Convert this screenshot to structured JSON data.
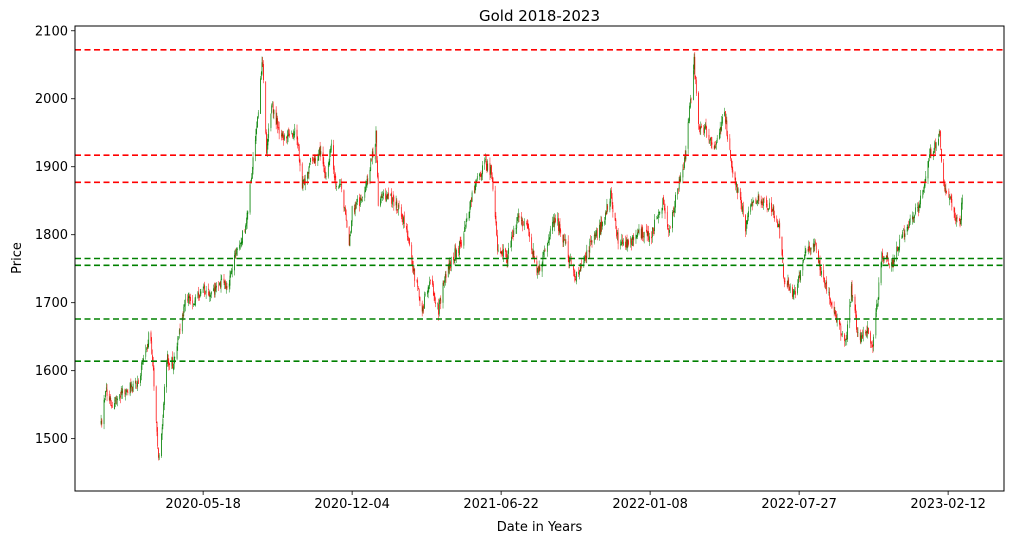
{
  "chart_data": {
    "type": "candlestick",
    "title": "Gold 2018-2023",
    "xlabel": "Date in Years",
    "ylabel": "Price",
    "x_range": [
      "2019-11-28",
      "2023-04-28"
    ],
    "ylim": [
      1423,
      2107
    ],
    "grid": false,
    "x_ticks": [
      "2020-05-18",
      "2020-12-04",
      "2021-06-22",
      "2022-01-08",
      "2022-07-27",
      "2023-02-12"
    ],
    "y_ticks": [
      1500,
      1600,
      1700,
      1800,
      1900,
      2000,
      2100
    ],
    "up_color": "#008000",
    "down_color": "#ff0000",
    "resistance_levels": [
      2072,
      1917,
      1877
    ],
    "support_levels": [
      1765,
      1755,
      1676,
      1614
    ],
    "resistance_color": "#ff0000",
    "support_color": "#008000",
    "data_start": "2020-01-02",
    "data_end": "2023-03-03",
    "price_path": [
      [
        "2020-01-02",
        1520
      ],
      [
        "2020-01-08",
        1572
      ],
      [
        "2020-01-16",
        1548
      ],
      [
        "2020-01-30",
        1565
      ],
      [
        "2020-02-10",
        1575
      ],
      [
        "2020-02-20",
        1580
      ],
      [
        "2020-03-01",
        1620
      ],
      [
        "2020-03-08",
        1665
      ],
      [
        "2020-03-12",
        1600
      ],
      [
        "2020-03-19",
        1470
      ],
      [
        "2020-03-23",
        1500
      ],
      [
        "2020-03-30",
        1620
      ],
      [
        "2020-04-08",
        1610
      ],
      [
        "2020-04-14",
        1650
      ],
      [
        "2020-04-24",
        1705
      ],
      [
        "2020-05-05",
        1700
      ],
      [
        "2020-05-18",
        1720
      ],
      [
        "2020-05-28",
        1715
      ],
      [
        "2020-06-10",
        1730
      ],
      [
        "2020-06-20",
        1725
      ],
      [
        "2020-06-30",
        1770
      ],
      [
        "2020-07-14",
        1810
      ],
      [
        "2020-07-27",
        1940
      ],
      [
        "2020-08-06",
        2060
      ],
      [
        "2020-08-11",
        1920
      ],
      [
        "2020-08-18",
        1990
      ],
      [
        "2020-08-28",
        1955
      ],
      [
        "2020-09-08",
        1940
      ],
      [
        "2020-09-20",
        1955
      ],
      [
        "2020-09-28",
        1870
      ],
      [
        "2020-10-08",
        1905
      ],
      [
        "2020-10-22",
        1920
      ],
      [
        "2020-10-30",
        1880
      ],
      [
        "2020-11-06",
        1940
      ],
      [
        "2020-11-10",
        1880
      ],
      [
        "2020-11-20",
        1870
      ],
      [
        "2020-11-30",
        1780
      ],
      [
        "2020-12-04",
        1835
      ],
      [
        "2020-12-14",
        1850
      ],
      [
        "2020-12-24",
        1875
      ],
      [
        "2021-01-05",
        1945
      ],
      [
        "2021-01-08",
        1850
      ],
      [
        "2021-01-20",
        1860
      ],
      [
        "2021-02-01",
        1845
      ],
      [
        "2021-02-12",
        1820
      ],
      [
        "2021-02-26",
        1740
      ],
      [
        "2021-03-08",
        1690
      ],
      [
        "2021-03-18",
        1735
      ],
      [
        "2021-03-30",
        1690
      ],
      [
        "2021-04-08",
        1740
      ],
      [
        "2021-04-20",
        1770
      ],
      [
        "2021-05-01",
        1790
      ],
      [
        "2021-05-10",
        1840
      ],
      [
        "2021-05-20",
        1880
      ],
      [
        "2021-06-01",
        1905
      ],
      [
        "2021-06-10",
        1890
      ],
      [
        "2021-06-17",
        1780
      ],
      [
        "2021-06-22",
        1780
      ],
      [
        "2021-06-30",
        1765
      ],
      [
        "2021-07-14",
        1825
      ],
      [
        "2021-07-28",
        1810
      ],
      [
        "2021-08-06",
        1760
      ],
      [
        "2021-08-09",
        1740
      ],
      [
        "2021-08-20",
        1780
      ],
      [
        "2021-09-03",
        1825
      ],
      [
        "2021-09-15",
        1790
      ],
      [
        "2021-09-29",
        1735
      ],
      [
        "2021-10-12",
        1765
      ],
      [
        "2021-10-22",
        1790
      ],
      [
        "2021-11-05",
        1815
      ],
      [
        "2021-11-16",
        1860
      ],
      [
        "2021-11-26",
        1790
      ],
      [
        "2021-12-08",
        1785
      ],
      [
        "2021-12-20",
        1800
      ],
      [
        "2022-01-03",
        1805
      ],
      [
        "2022-01-08",
        1795
      ],
      [
        "2022-01-25",
        1850
      ],
      [
        "2022-02-03",
        1805
      ],
      [
        "2022-02-14",
        1870
      ],
      [
        "2022-02-24",
        1910
      ],
      [
        "2022-03-08",
        2055
      ],
      [
        "2022-03-14",
        1960
      ],
      [
        "2022-03-25",
        1950
      ],
      [
        "2022-04-06",
        1925
      ],
      [
        "2022-04-18",
        1980
      ],
      [
        "2022-04-28",
        1895
      ],
      [
        "2022-05-10",
        1850
      ],
      [
        "2022-05-16",
        1810
      ],
      [
        "2022-05-25",
        1850
      ],
      [
        "2022-06-06",
        1850
      ],
      [
        "2022-06-20",
        1840
      ],
      [
        "2022-06-30",
        1810
      ],
      [
        "2022-07-06",
        1740
      ],
      [
        "2022-07-20",
        1710
      ],
      [
        "2022-07-27",
        1735
      ],
      [
        "2022-08-05",
        1775
      ],
      [
        "2022-08-16",
        1790
      ],
      [
        "2022-08-25",
        1750
      ],
      [
        "2022-09-05",
        1710
      ],
      [
        "2022-09-16",
        1670
      ],
      [
        "2022-09-28",
        1640
      ],
      [
        "2022-10-05",
        1720
      ],
      [
        "2022-10-14",
        1650
      ],
      [
        "2022-10-27",
        1660
      ],
      [
        "2022-11-03",
        1635
      ],
      [
        "2022-11-07",
        1680
      ],
      [
        "2022-11-15",
        1770
      ],
      [
        "2022-11-28",
        1755
      ],
      [
        "2022-12-08",
        1790
      ],
      [
        "2022-12-20",
        1815
      ],
      [
        "2023-01-03",
        1840
      ],
      [
        "2023-01-12",
        1880
      ],
      [
        "2023-01-20",
        1925
      ],
      [
        "2023-01-27",
        1930
      ],
      [
        "2023-02-01",
        1945
      ],
      [
        "2023-02-05",
        1870
      ],
      [
        "2023-02-12",
        1860
      ],
      [
        "2023-02-22",
        1825
      ],
      [
        "2023-02-28",
        1815
      ],
      [
        "2023-03-03",
        1855
      ]
    ]
  }
}
